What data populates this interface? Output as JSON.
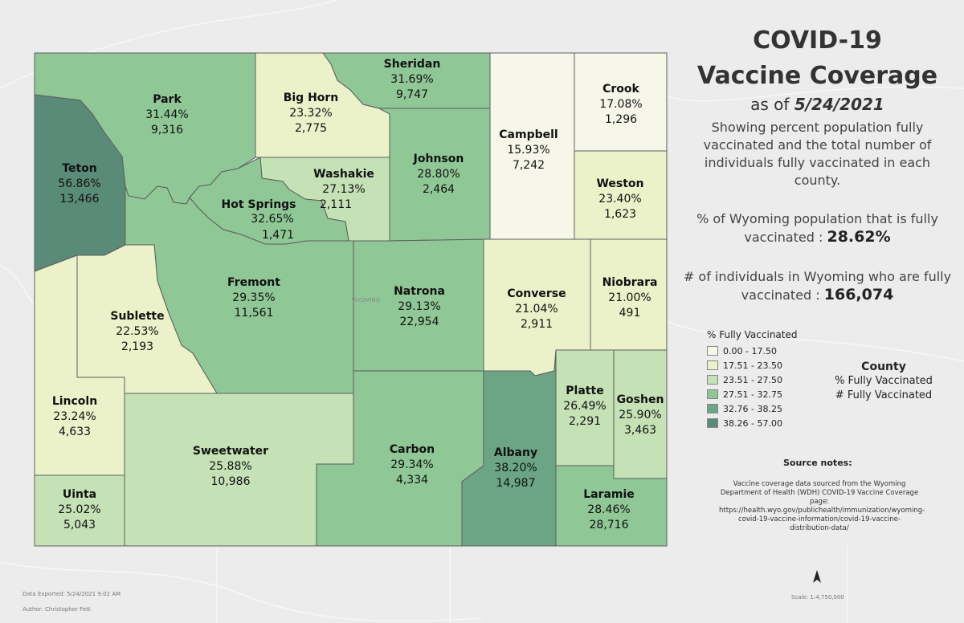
{
  "title_line1": "COVID-19",
  "title_line2": "Vaccine Coverage",
  "as_of_prefix": "as of ",
  "as_of_date": "5/24/2021",
  "description": "Showing percent population fully vaccinated and the total number of individuals fully vaccinated in each county.",
  "pct_stat_label": "% of Wyoming population that is fully vaccinated : ",
  "pct_stat_value": "28.62%",
  "count_stat_label": "# of individuals in Wyoming who are fully vaccinated : ",
  "count_stat_value": "166,074",
  "legend": {
    "title": "% Fully Vaccinated",
    "classes": [
      {
        "label": "0.00 - 17.50",
        "color": "#f6f7e9"
      },
      {
        "label": "17.51 - 23.50",
        "color": "#ebf1c9"
      },
      {
        "label": "23.51 - 27.50",
        "color": "#c5e1b6"
      },
      {
        "label": "27.51 - 32.75",
        "color": "#8fc796"
      },
      {
        "label": "32.76 - 38.25",
        "color": "#6ba586"
      },
      {
        "label": "38.26 - 57.00",
        "color": "#5a8b78"
      }
    ]
  },
  "county_key": {
    "line1": "County",
    "line2": "% Fully Vaccinated",
    "line3": "# Fully Vaccinated"
  },
  "source": {
    "title": "Source notes:",
    "body": "Vaccine coverage data sourced from the Wyoming Department of Health (WDH) COVID-19 Vaccine Coverage page: https://health.wyo.gov/publichealth/immunization/wyoming-covid-19-vaccine-information/covid-19-vaccine-distribution-data/"
  },
  "footer": {
    "exported": "Data Exported: 5/24/2021 9:02 AM",
    "author": "Author: Christopher Fett",
    "scale": "Scale: 1:4,750,000"
  },
  "basemap_label": "WYOMING",
  "counties": [
    {
      "name": "Park",
      "pct": "31.44%",
      "count": "9,316",
      "class": 3
    },
    {
      "name": "Big Horn",
      "pct": "23.32%",
      "count": "2,775",
      "class": 1
    },
    {
      "name": "Sheridan",
      "pct": "31.69%",
      "count": "9,747",
      "class": 3
    },
    {
      "name": "Campbell",
      "pct": "15.93%",
      "count": "7,242",
      "class": 0
    },
    {
      "name": "Crook",
      "pct": "17.08%",
      "count": "1,296",
      "class": 0
    },
    {
      "name": "Teton",
      "pct": "56.86%",
      "count": "13,466",
      "class": 5
    },
    {
      "name": "Washakie",
      "pct": "27.13%",
      "count": "2,111",
      "class": 2
    },
    {
      "name": "Johnson",
      "pct": "28.80%",
      "count": "2,464",
      "class": 3
    },
    {
      "name": "Weston",
      "pct": "23.40%",
      "count": "1,623",
      "class": 1
    },
    {
      "name": "Hot Springs",
      "pct": "32.65%",
      "count": "1,471",
      "class": 3
    },
    {
      "name": "Fremont",
      "pct": "29.35%",
      "count": "11,561",
      "class": 3
    },
    {
      "name": "Natrona",
      "pct": "29.13%",
      "count": "22,954",
      "class": 3
    },
    {
      "name": "Converse",
      "pct": "21.04%",
      "count": "2,911",
      "class": 1
    },
    {
      "name": "Niobrara",
      "pct": "21.00%",
      "count": "491",
      "class": 1
    },
    {
      "name": "Sublette",
      "pct": "22.53%",
      "count": "2,193",
      "class": 1
    },
    {
      "name": "Lincoln",
      "pct": "23.24%",
      "count": "4,633",
      "class": 1
    },
    {
      "name": "Sweetwater",
      "pct": "25.88%",
      "count": "10,986",
      "class": 2
    },
    {
      "name": "Carbon",
      "pct": "29.34%",
      "count": "4,334",
      "class": 3
    },
    {
      "name": "Albany",
      "pct": "38.20%",
      "count": "14,987",
      "class": 4
    },
    {
      "name": "Platte",
      "pct": "26.49%",
      "count": "2,291",
      "class": 2
    },
    {
      "name": "Goshen",
      "pct": "25.90%",
      "count": "3,463",
      "class": 2
    },
    {
      "name": "Uinta",
      "pct": "25.02%",
      "count": "5,043",
      "class": 2
    },
    {
      "name": "Laramie",
      "pct": "28.46%",
      "count": "28,716",
      "class": 3
    }
  ]
}
